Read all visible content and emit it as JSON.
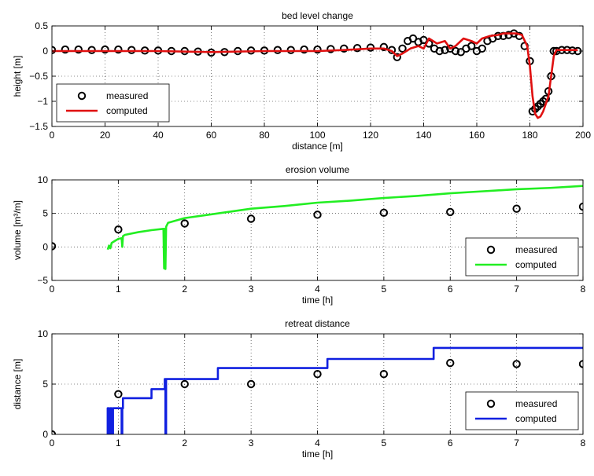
{
  "colors": {
    "measured": "#000000",
    "bed_computed": "#e01010",
    "erosion_computed": "#22ee22",
    "retreat_computed": "#1020e0"
  },
  "chart_data": [
    {
      "type": "line",
      "title": "bed level change",
      "xlabel": "distance [m]",
      "ylabel": "height [m]",
      "xlim": [
        0,
        200
      ],
      "ylim": [
        -1.5,
        0.5
      ],
      "xticks": [
        0,
        20,
        40,
        60,
        80,
        100,
        120,
        140,
        160,
        180,
        200
      ],
      "yticks": [
        -1.5,
        -1,
        -0.5,
        0,
        0.5
      ],
      "xticklabels": [
        "0",
        "20",
        "40",
        "60",
        "80",
        "100",
        "120",
        "140",
        "160",
        "180",
        "200"
      ],
      "yticklabels": [
        "−1.5",
        "−1",
        "−0.5",
        "0",
        "0.5"
      ],
      "grid": true,
      "legend": "bottom-left",
      "series": [
        {
          "name": "measured",
          "style": "markers",
          "x": [
            0,
            5,
            10,
            15,
            20,
            25,
            30,
            35,
            40,
            45,
            50,
            55,
            60,
            65,
            70,
            75,
            80,
            85,
            90,
            95,
            100,
            105,
            110,
            115,
            120,
            125,
            128,
            130,
            132,
            134,
            136,
            138,
            140,
            142,
            144,
            146,
            148,
            150,
            152,
            154,
            156,
            158,
            160,
            162,
            164,
            166,
            168,
            170,
            172,
            174,
            176,
            178,
            180,
            181,
            182,
            183,
            184,
            185,
            186,
            187,
            188,
            189,
            190,
            192,
            194,
            196,
            198
          ],
          "y": [
            0.02,
            0.03,
            0.03,
            0.02,
            0.03,
            0.03,
            0.02,
            0.01,
            0.01,
            0.0,
            0.0,
            -0.01,
            -0.03,
            -0.02,
            0.0,
            0.01,
            0.01,
            0.02,
            0.02,
            0.03,
            0.03,
            0.04,
            0.05,
            0.06,
            0.07,
            0.08,
            0.02,
            -0.12,
            0.05,
            0.2,
            0.25,
            0.18,
            0.22,
            0.15,
            0.05,
            0.0,
            0.02,
            0.05,
            0.0,
            -0.02,
            0.05,
            0.1,
            0.0,
            0.05,
            0.2,
            0.25,
            0.3,
            0.3,
            0.32,
            0.35,
            0.3,
            0.1,
            -0.2,
            -1.2,
            -1.15,
            -1.1,
            -1.05,
            -1.0,
            -0.95,
            -0.8,
            -0.5,
            0.0,
            0.0,
            0.02,
            0.02,
            0.01,
            0.0
          ]
        },
        {
          "name": "computed",
          "style": "line",
          "x": [
            0,
            20,
            40,
            60,
            80,
            100,
            110,
            120,
            125,
            128,
            130,
            132,
            135,
            138,
            140,
            142,
            145,
            148,
            150,
            152,
            155,
            158,
            160,
            162,
            165,
            168,
            170,
            172,
            175,
            177,
            179,
            180,
            181,
            182,
            183,
            184,
            185,
            186,
            187,
            188,
            189,
            190,
            192,
            195,
            198
          ],
          "y": [
            0.0,
            0.0,
            0.0,
            -0.02,
            0.0,
            0.0,
            0.02,
            0.05,
            0.05,
            0.0,
            -0.1,
            -0.05,
            0.05,
            0.1,
            0.05,
            0.25,
            0.15,
            0.2,
            0.05,
            0.1,
            0.25,
            0.2,
            0.15,
            0.25,
            0.3,
            0.32,
            0.35,
            0.35,
            0.35,
            0.32,
            0.1,
            -0.3,
            -0.9,
            -1.25,
            -1.33,
            -1.3,
            -1.2,
            -1.05,
            -0.9,
            -0.5,
            -0.1,
            0.02,
            0.02,
            0.02,
            0.02
          ]
        }
      ]
    },
    {
      "type": "line",
      "title": "erosion volume",
      "xlabel": "time [h]",
      "ylabel": "volume [m³/m]",
      "xlim": [
        0,
        8
      ],
      "ylim": [
        -5,
        10
      ],
      "xticks": [
        0,
        1,
        2,
        3,
        4,
        5,
        6,
        7,
        8
      ],
      "yticks": [
        -5,
        0,
        5,
        10
      ],
      "xticklabels": [
        "0",
        "1",
        "2",
        "3",
        "4",
        "5",
        "6",
        "7",
        "8"
      ],
      "yticklabels": [
        "−5",
        "0",
        "5",
        "10"
      ],
      "grid": true,
      "legend": "bottom-right",
      "series": [
        {
          "name": "measured",
          "style": "markers",
          "x": [
            0,
            1,
            2,
            3,
            4,
            5,
            6,
            7,
            8
          ],
          "y": [
            0.1,
            2.6,
            3.5,
            4.2,
            4.8,
            5.1,
            5.2,
            5.7,
            6.0
          ]
        },
        {
          "name": "computed",
          "style": "line",
          "x": [
            0.84,
            0.86,
            0.88,
            0.9,
            0.95,
            1.0,
            1.05,
            1.06,
            1.07,
            1.1,
            1.3,
            1.5,
            1.68,
            1.69,
            1.7,
            1.71,
            1.72,
            1.75,
            2.0,
            2.5,
            3.0,
            3.5,
            4.0,
            4.5,
            5.0,
            5.5,
            6.0,
            6.5,
            7.0,
            7.5,
            8.0
          ],
          "y": [
            -0.4,
            0.2,
            -0.2,
            0.6,
            0.9,
            1.2,
            1.3,
            0.0,
            1.6,
            1.8,
            2.2,
            2.5,
            2.7,
            -3.2,
            2.7,
            -3.3,
            3.0,
            3.6,
            4.3,
            5.0,
            5.7,
            6.1,
            6.6,
            6.9,
            7.3,
            7.6,
            8.0,
            8.3,
            8.6,
            8.8,
            9.1
          ]
        }
      ]
    },
    {
      "type": "line",
      "title": "retreat distance",
      "xlabel": "time [h]",
      "ylabel": "distance [m]",
      "xlim": [
        0,
        8
      ],
      "ylim": [
        0,
        10
      ],
      "xticks": [
        0,
        1,
        2,
        3,
        4,
        5,
        6,
        7,
        8
      ],
      "yticks": [
        0,
        5,
        10
      ],
      "xticklabels": [
        "0",
        "1",
        "2",
        "3",
        "4",
        "5",
        "6",
        "7",
        "8"
      ],
      "yticklabels": [
        "0",
        "5",
        "10"
      ],
      "grid": true,
      "legend": "bottom-right",
      "series": [
        {
          "name": "measured",
          "style": "markers",
          "x": [
            0,
            1,
            2,
            3,
            4,
            5,
            6,
            7,
            8
          ],
          "y": [
            0,
            4,
            5,
            5,
            6,
            6,
            7.1,
            7,
            7
          ]
        },
        {
          "name": "computed",
          "style": "line",
          "x": [
            0.84,
            0.84,
            0.86,
            0.86,
            0.88,
            0.88,
            0.9,
            0.9,
            0.92,
            0.92,
            0.95,
            0.95,
            1.05,
            1.05,
            1.06,
            1.06,
            1.07,
            1.07,
            1.5,
            1.5,
            1.7,
            1.7,
            1.71,
            1.71,
            1.72,
            1.72,
            2.5,
            2.5,
            4.15,
            4.15,
            5.75,
            5.75,
            8.0
          ],
          "y": [
            0,
            2.6,
            2.6,
            0,
            0,
            2.6,
            2.6,
            0,
            0,
            2.6,
            2.6,
            2.6,
            2.6,
            0,
            0,
            2.6,
            2.6,
            3.6,
            3.6,
            4.5,
            4.5,
            5.5,
            5.5,
            0,
            0,
            5.5,
            5.5,
            6.6,
            6.6,
            7.5,
            7.5,
            8.6,
            8.6
          ]
        }
      ]
    }
  ]
}
